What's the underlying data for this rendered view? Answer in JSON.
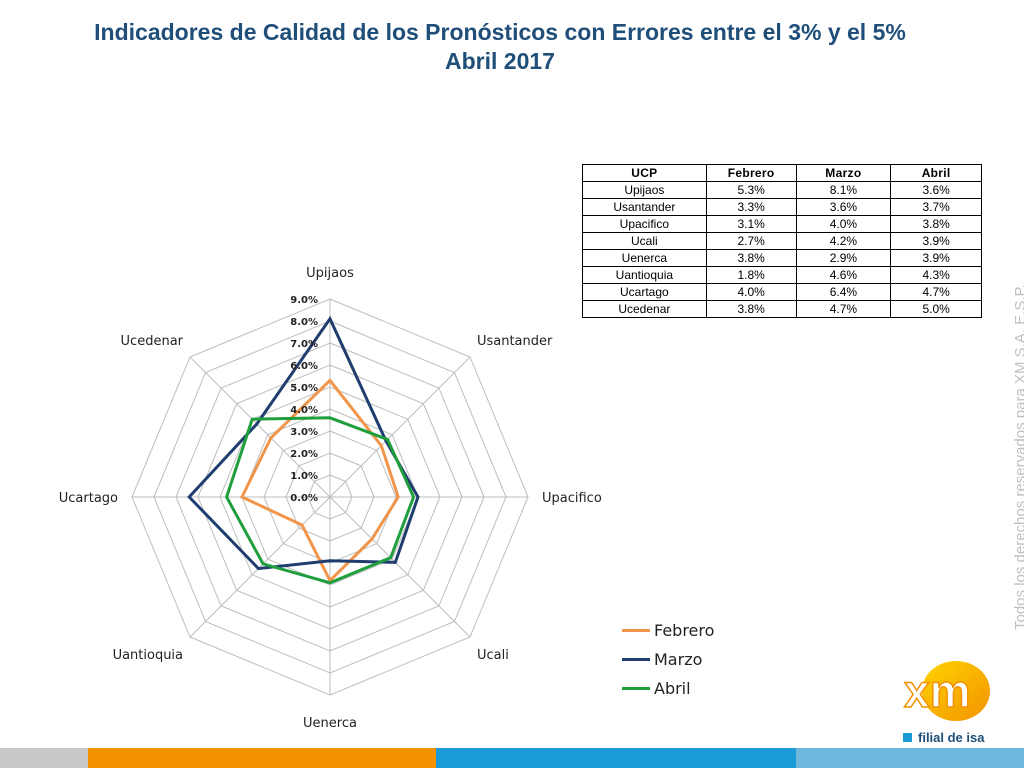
{
  "title": {
    "line1": "Indicadores de Calidad de los Pronósticos con Errores entre el 3% y el 5%",
    "line2": "Abril 2017"
  },
  "table": {
    "headers": [
      "UCP",
      "Febrero",
      "Marzo",
      "Abril"
    ],
    "rows": [
      [
        "Upijaos",
        "5.3%",
        "8.1%",
        "3.6%"
      ],
      [
        "Usantander",
        "3.3%",
        "3.6%",
        "3.7%"
      ],
      [
        "Upacifico",
        "3.1%",
        "4.0%",
        "3.8%"
      ],
      [
        "Ucali",
        "2.7%",
        "4.2%",
        "3.9%"
      ],
      [
        "Uenerca",
        "3.8%",
        "2.9%",
        "3.9%"
      ],
      [
        "Uantioquia",
        "1.8%",
        "4.6%",
        "4.3%"
      ],
      [
        "Ucartago",
        "4.0%",
        "6.4%",
        "4.7%"
      ],
      [
        "Ucedenar",
        "3.8%",
        "4.7%",
        "5.0%"
      ]
    ]
  },
  "chart_data": {
    "type": "radar",
    "categories": [
      "Upijaos",
      "Usantander",
      "Upacifico",
      "Ucali",
      "Uenerca",
      "Uantioquia",
      "Ucartago",
      "Ucedenar"
    ],
    "series": [
      {
        "name": "Febrero",
        "color": "#f0954a",
        "values": [
          5.3,
          3.3,
          3.1,
          2.7,
          3.8,
          1.8,
          4.0,
          3.8
        ]
      },
      {
        "name": "Marzo",
        "color": "#1f3d6e",
        "values": [
          8.1,
          3.6,
          4.0,
          4.2,
          2.9,
          4.6,
          6.4,
          4.7
        ]
      },
      {
        "name": "Abril",
        "color": "#1f9e3c",
        "values": [
          3.6,
          3.7,
          3.8,
          3.9,
          3.9,
          4.3,
          4.7,
          5.0
        ]
      }
    ],
    "rlim": [
      0,
      9
    ],
    "tick_labels": [
      "0.0%",
      "1.0%",
      "2.0%",
      "3.0%",
      "4.0%",
      "5.0%",
      "6.0%",
      "7.0%",
      "8.0%",
      "9.0%"
    ],
    "grid": true,
    "legend": "bottom-right"
  },
  "watermark": "Todos los derechos reservados para XM S.A. E.S.P.",
  "logo": {
    "text": "xm",
    "tagline": "filial de isa",
    "colors": {
      "orange": "#f39200",
      "yellow": "#ffd400",
      "blue": "#1a9ad6"
    }
  },
  "footer_colors": [
    "#c8c8c8",
    "#f39200",
    "#1a9ad6",
    "#6fb8dd"
  ]
}
